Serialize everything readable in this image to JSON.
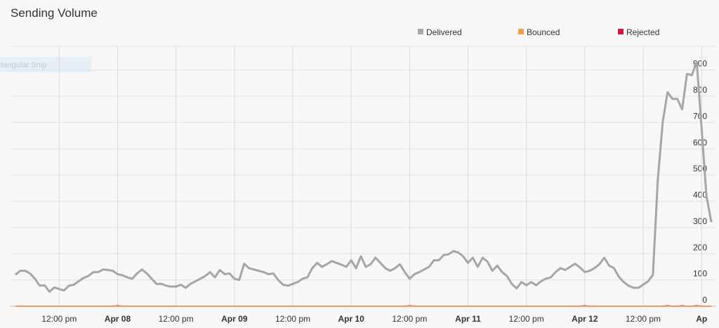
{
  "chart_data": {
    "type": "line",
    "title": "Sending Volume",
    "annotation": "ctangular Snip",
    "x": [
      3,
      4,
      5,
      6,
      7,
      8,
      9,
      10,
      11,
      12,
      13,
      14,
      15,
      16,
      17,
      18,
      19,
      20,
      21,
      22,
      23,
      24,
      25,
      26,
      27,
      28,
      29,
      30,
      31,
      32,
      33,
      34,
      35,
      36,
      37,
      38,
      39,
      40,
      41,
      42,
      43,
      44,
      45,
      46,
      47,
      48,
      49,
      50,
      51,
      52,
      53,
      54,
      55,
      56,
      57,
      58,
      59,
      60,
      61,
      62,
      63,
      64,
      65,
      66,
      67,
      68,
      69,
      70,
      71,
      72,
      73,
      74,
      75,
      76,
      77,
      78,
      79,
      80,
      81,
      82,
      83,
      84,
      85,
      86,
      87,
      88,
      89,
      90,
      91,
      92,
      93,
      94,
      95,
      96,
      97,
      98,
      99,
      100,
      101,
      102,
      103,
      104,
      105,
      106,
      107,
      108,
      109,
      110,
      111,
      112,
      113,
      114,
      115,
      116,
      117,
      118,
      119,
      120,
      121,
      122,
      123,
      124,
      125,
      126,
      127,
      128,
      129,
      130,
      131,
      132,
      133,
      134,
      135,
      136,
      137,
      138,
      139,
      140,
      141,
      142,
      143,
      144,
      145,
      146
    ],
    "series": [
      {
        "name": "Delivered",
        "color": "#a6a6a6",
        "values": [
          120,
          135,
          135,
          125,
          105,
          78,
          80,
          55,
          72,
          65,
          60,
          78,
          82,
          95,
          108,
          115,
          130,
          130,
          140,
          138,
          135,
          122,
          118,
          110,
          105,
          125,
          140,
          125,
          105,
          85,
          85,
          78,
          75,
          75,
          82,
          70,
          85,
          95,
          105,
          115,
          130,
          110,
          138,
          122,
          125,
          105,
          100,
          162,
          145,
          140,
          135,
          130,
          122,
          125,
          100,
          82,
          78,
          85,
          92,
          105,
          110,
          145,
          165,
          150,
          160,
          172,
          165,
          158,
          150,
          175,
          145,
          190,
          150,
          160,
          185,
          165,
          145,
          135,
          145,
          160,
          130,
          105,
          122,
          130,
          140,
          150,
          175,
          175,
          195,
          198,
          210,
          205,
          190,
          165,
          185,
          150,
          185,
          170,
          135,
          155,
          130,
          115,
          85,
          68,
          92,
          80,
          92,
          80,
          95,
          105,
          110,
          130,
          145,
          138,
          150,
          162,
          148,
          130,
          135,
          145,
          160,
          185,
          155,
          145,
          112,
          92,
          78,
          70,
          70,
          82,
          95,
          120,
          480,
          700,
          815,
          790,
          790,
          750,
          885,
          880,
          930,
          680,
          420,
          320
        ]
      },
      {
        "name": "Bounced",
        "color": "#f0a040",
        "values": [
          0,
          0,
          0,
          0,
          0,
          0,
          0,
          0,
          0,
          0,
          0,
          0,
          0,
          0,
          0,
          0,
          0,
          0,
          0,
          0,
          0,
          0,
          0,
          0,
          0,
          0,
          0,
          0,
          0,
          0,
          0,
          0,
          0,
          0,
          0,
          0,
          0,
          0,
          0,
          0,
          0,
          0,
          0,
          0,
          0,
          0,
          0,
          0,
          0,
          0,
          0,
          0,
          0,
          0,
          0,
          0,
          0,
          0,
          0,
          0,
          0,
          0,
          0,
          0,
          0,
          0,
          0,
          0,
          0,
          0,
          0,
          0,
          0,
          0,
          0,
          0,
          0,
          0,
          0,
          0,
          0,
          0,
          0,
          0,
          0,
          0,
          0,
          0,
          0,
          0,
          0,
          0,
          0,
          0,
          0,
          0,
          0,
          0,
          0,
          0,
          0,
          0,
          0,
          0,
          0,
          0,
          0,
          0,
          0,
          0,
          0,
          0,
          0,
          0,
          0,
          0,
          0,
          0,
          0,
          0,
          0,
          0,
          0,
          0,
          0,
          0,
          0,
          0,
          0,
          0,
          0,
          0,
          0,
          0,
          0,
          0,
          0,
          0,
          0,
          0,
          0,
          0,
          0,
          0
        ]
      },
      {
        "name": "Rejected",
        "color": "#dc143c",
        "values": [
          0,
          0,
          0,
          0,
          0,
          0,
          0,
          0,
          0,
          0,
          0,
          0,
          0,
          0,
          0,
          0,
          0,
          0,
          0,
          0,
          0,
          2,
          0,
          0,
          0,
          0,
          0,
          0,
          0,
          0,
          0,
          0,
          0,
          0,
          0,
          0,
          0,
          0,
          0,
          0,
          0,
          0,
          0,
          0,
          0,
          0,
          0,
          0,
          0,
          0,
          0,
          0,
          0,
          0,
          0,
          0,
          0,
          0,
          0,
          0,
          0,
          0,
          0,
          0,
          0,
          0,
          0,
          0,
          0,
          0,
          0,
          0,
          0,
          0,
          0,
          0,
          0,
          0,
          0,
          0,
          0,
          2,
          0,
          0,
          0,
          0,
          0,
          0,
          0,
          0,
          0,
          0,
          0,
          0,
          0,
          0,
          0,
          0,
          0,
          0,
          0,
          0,
          0,
          0,
          0,
          0,
          0,
          0,
          0,
          0,
          0,
          0,
          0,
          0,
          0,
          0,
          0,
          2,
          0,
          0,
          0,
          0,
          0,
          0,
          0,
          0,
          0,
          0,
          0,
          0,
          0,
          0,
          0,
          0,
          2,
          0,
          0,
          2,
          0,
          0,
          2,
          0,
          0,
          0
        ]
      }
    ],
    "xlim": [
      2,
      147
    ],
    "xticks": [
      {
        "value": 12,
        "label": "12:00 pm"
      },
      {
        "value": 24,
        "label": "Apr 08"
      },
      {
        "value": 36,
        "label": "12:00 pm"
      },
      {
        "value": 48,
        "label": "Apr 09"
      },
      {
        "value": 60,
        "label": "12:00 pm"
      },
      {
        "value": 72,
        "label": "Apr 10"
      },
      {
        "value": 84,
        "label": "12:00 pm"
      },
      {
        "value": 96,
        "label": "Apr 11"
      },
      {
        "value": 108,
        "label": "12:00 pm"
      },
      {
        "value": 120,
        "label": "Apr 12"
      },
      {
        "value": 132,
        "label": "12:00 pm"
      },
      {
        "value": 144,
        "label": "Ap"
      }
    ],
    "ylim": [
      0,
      990
    ],
    "yticks": [
      0,
      100,
      200,
      300,
      400,
      500,
      600,
      700,
      800,
      900
    ],
    "grid": true
  }
}
